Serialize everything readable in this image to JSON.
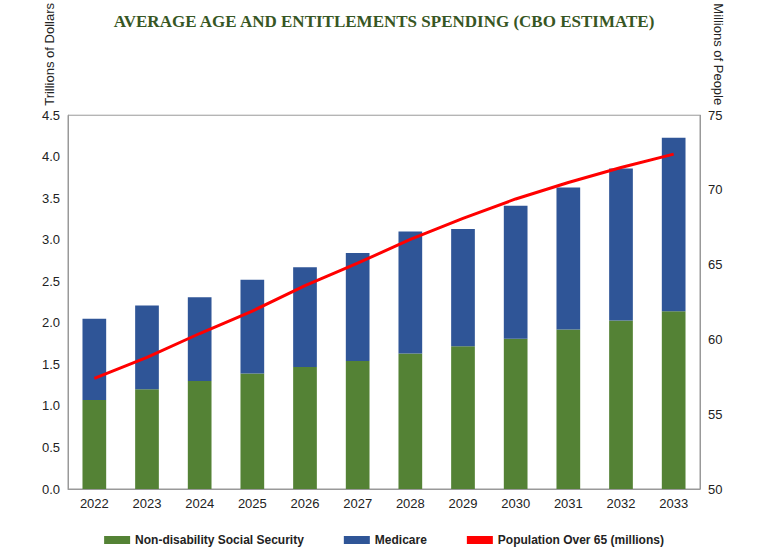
{
  "chart_data": {
    "type": "bar",
    "title": "AVERAGE AGE AND ENTITLEMENTS SPENDING (CBO ESTIMATE)",
    "y_label": "Trillions of Dollars",
    "y2_label": "Millions of People",
    "categories": [
      "2022",
      "2023",
      "2024",
      "2025",
      "2026",
      "2027",
      "2028",
      "2029",
      "2030",
      "2031",
      "2032",
      "2033"
    ],
    "stacked": true,
    "grid": false,
    "legend": "bottom",
    "ylim": [
      0,
      4.5
    ],
    "yticks": [
      {
        "value": 0,
        "label": "0.0"
      },
      0.5,
      {
        "value": 1,
        "label": "1.0"
      },
      1.5,
      {
        "value": 2,
        "label": "2.0"
      },
      2.5,
      {
        "value": 3,
        "label": "3.0"
      },
      3.5,
      {
        "value": 4,
        "label": "4.0"
      },
      4.5
    ],
    "y2lim": [
      50,
      75
    ],
    "y2ticks": [
      50,
      55,
      60,
      65,
      70,
      75
    ],
    "series": [
      {
        "name": "Non-disability Social Security",
        "type": "bar",
        "color": "#548235",
        "values": [
          1.07,
          1.2,
          1.3,
          1.39,
          1.47,
          1.54,
          1.63,
          1.72,
          1.81,
          1.92,
          2.03,
          2.14
        ]
      },
      {
        "name": "Medicare",
        "type": "bar",
        "color": "#2f5597",
        "values": [
          0.98,
          1.01,
          1.01,
          1.13,
          1.2,
          1.3,
          1.47,
          1.41,
          1.6,
          1.71,
          1.83,
          2.09
        ]
      },
      {
        "name": "Population Over 65 (millions)",
        "type": "line",
        "color": "#ff0000",
        "axis": "y2",
        "values": [
          57.4,
          58.8,
          60.4,
          61.9,
          63.6,
          65.1,
          66.7,
          68.1,
          69.4,
          70.5,
          71.5,
          72.4
        ]
      }
    ]
  }
}
